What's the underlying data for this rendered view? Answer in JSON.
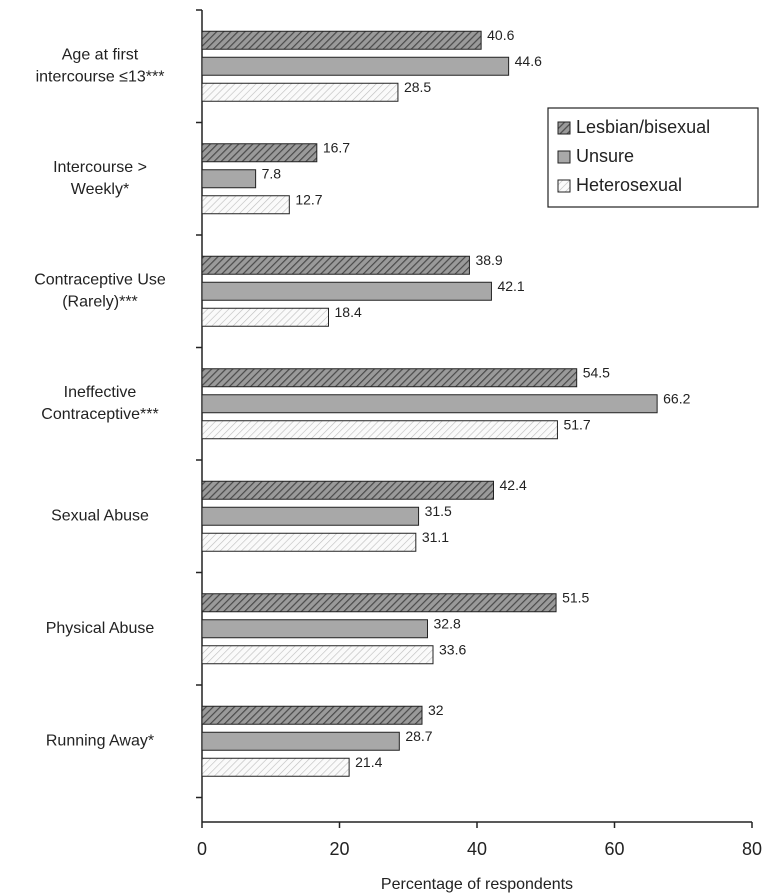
{
  "chart_data": {
    "type": "bar",
    "orientation": "horizontal",
    "categories": [
      [
        "Age at first",
        "intercourse ≤13***"
      ],
      [
        "Intercourse >",
        "Weekly*"
      ],
      [
        "Contraceptive Use",
        "(Rarely)***"
      ],
      [
        "Ineffective",
        "Contraceptive***"
      ],
      [
        "Sexual Abuse"
      ],
      [
        "Physical Abuse"
      ],
      [
        "Running Away*"
      ]
    ],
    "series": [
      {
        "name": "Lesbian/bisexual",
        "color": "#4a4a4a",
        "pattern": "hatch",
        "values": [
          40.6,
          16.7,
          38.9,
          54.5,
          42.4,
          51.5,
          32
        ]
      },
      {
        "name": "Unsure",
        "color": "#a8a8a8",
        "pattern": "solid",
        "values": [
          44.6,
          7.8,
          42.1,
          66.2,
          31.5,
          32.8,
          28.7
        ]
      },
      {
        "name": "Heterosexual",
        "color": "#bdbdbd",
        "pattern": "hatch-light",
        "values": [
          28.5,
          12.7,
          18.4,
          51.7,
          31.1,
          33.6,
          21.4
        ]
      }
    ],
    "xlim": [
      0,
      80
    ],
    "xticks": [
      0,
      20,
      40,
      60,
      80
    ],
    "xlabel": "Percentage of respondents",
    "legend": "upper right"
  }
}
